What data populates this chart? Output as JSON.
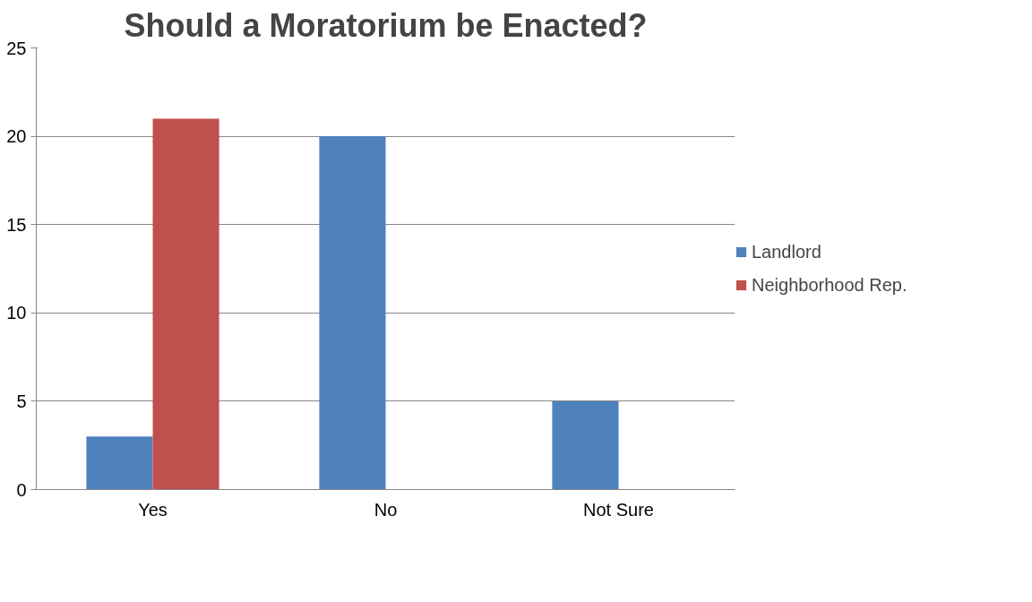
{
  "chart_data": {
    "type": "bar",
    "title": "Should a Moratorium be Enacted?",
    "categories": [
      "Yes",
      "No",
      "Not Sure"
    ],
    "series": [
      {
        "name": "Landlord",
        "color": "#4f81bd",
        "values": [
          3,
          20,
          5
        ]
      },
      {
        "name": "Neighborhood Rep.",
        "color": "#c0504d",
        "values": [
          21,
          0,
          0
        ]
      }
    ],
    "ylim": [
      0,
      25
    ],
    "yticks": [
      0,
      5,
      10,
      15,
      20,
      25
    ],
    "grid": "y",
    "legend": "right"
  }
}
